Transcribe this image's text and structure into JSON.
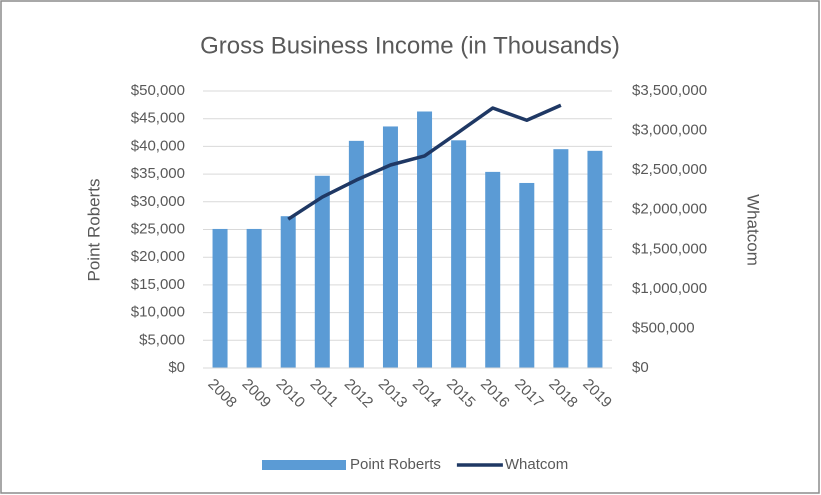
{
  "chart_data": {
    "type": "bar_line",
    "title": "Gross Business Income (in Thousands)",
    "categories": [
      "2008",
      "2009",
      "2010",
      "2011",
      "2012",
      "2013",
      "2014",
      "2015",
      "2016",
      "2017",
      "2018",
      "2019"
    ],
    "ylabel": "Point Roberts",
    "y2label": "Whatcom",
    "grid": true,
    "legend": "bottom",
    "ylim": [
      0,
      50000
    ],
    "yticks": [
      {
        "value": 0,
        "label": "$0"
      },
      {
        "value": 5000,
        "label": "$5,000"
      },
      {
        "value": 10000,
        "label": "$10,000"
      },
      {
        "value": 15000,
        "label": "$15,000"
      },
      {
        "value": 20000,
        "label": "$20,000"
      },
      {
        "value": 25000,
        "label": "$25,000"
      },
      {
        "value": 30000,
        "label": "$30,000"
      },
      {
        "value": 35000,
        "label": "$35,000"
      },
      {
        "value": 40000,
        "label": "$40,000"
      },
      {
        "value": 45000,
        "label": "$45,000"
      },
      {
        "value": 50000,
        "label": "$50,000"
      }
    ],
    "y2lim": [
      0,
      3500000
    ],
    "y2ticks": [
      {
        "value": 0,
        "label": "$0"
      },
      {
        "value": 500000,
        "label": "$500,000"
      },
      {
        "value": 1000000,
        "label": "$1,000,000"
      },
      {
        "value": 1500000,
        "label": "$1,500,000"
      },
      {
        "value": 2000000,
        "label": "$2,000,000"
      },
      {
        "value": 2500000,
        "label": "$2,500,000"
      },
      {
        "value": 3000000,
        "label": "$3,000,000"
      },
      {
        "value": 3500000,
        "label": "$3,500,000"
      }
    ],
    "series": [
      {
        "name": "Point Roberts",
        "type": "bar",
        "color": "#5b9bd5",
        "values": [
          25100,
          25100,
          27400,
          34700,
          41000,
          43600,
          46300,
          41100,
          35400,
          33400,
          39500,
          39200
        ]
      },
      {
        "name": "Whatcom",
        "type": "line",
        "axis": "y2",
        "color": "#1f3864",
        "values": [
          null,
          null,
          1880000,
          2160000,
          2375000,
          2565000,
          2680000,
          2980000,
          3285000,
          3130000,
          3320000,
          null
        ]
      }
    ]
  }
}
